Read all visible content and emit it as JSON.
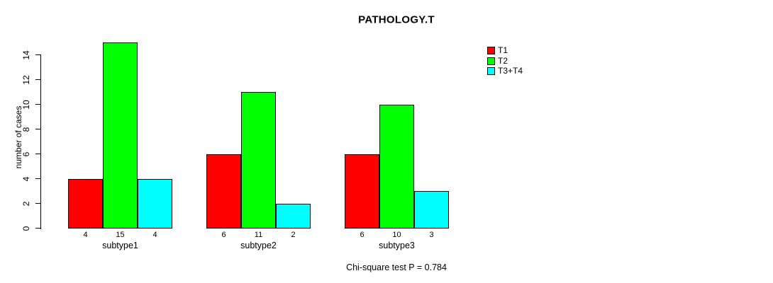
{
  "chart_data": {
    "type": "bar",
    "title": "PATHOLOGY.T",
    "xlabel": "",
    "ylabel": "number of cases",
    "categories": [
      "subtype1",
      "subtype2",
      "subtype3"
    ],
    "series": [
      {
        "name": "T1",
        "color": "#FF0000",
        "values": [
          4,
          6,
          6
        ]
      },
      {
        "name": "T2",
        "color": "#00FF00",
        "values": [
          15,
          11,
          10
        ]
      },
      {
        "name": "T3+T4",
        "color": "#00FFFF",
        "values": [
          4,
          2,
          3
        ]
      }
    ],
    "yticks": [
      0,
      2,
      4,
      6,
      8,
      10,
      12,
      14
    ],
    "ylim": [
      0,
      15
    ],
    "grid": false,
    "legend_position": "right",
    "bar_value_labels": [
      [
        4,
        15,
        4
      ],
      [
        6,
        11,
        2
      ],
      [
        6,
        10,
        3
      ]
    ],
    "annotation": "Chi-square test P = 0.784"
  }
}
